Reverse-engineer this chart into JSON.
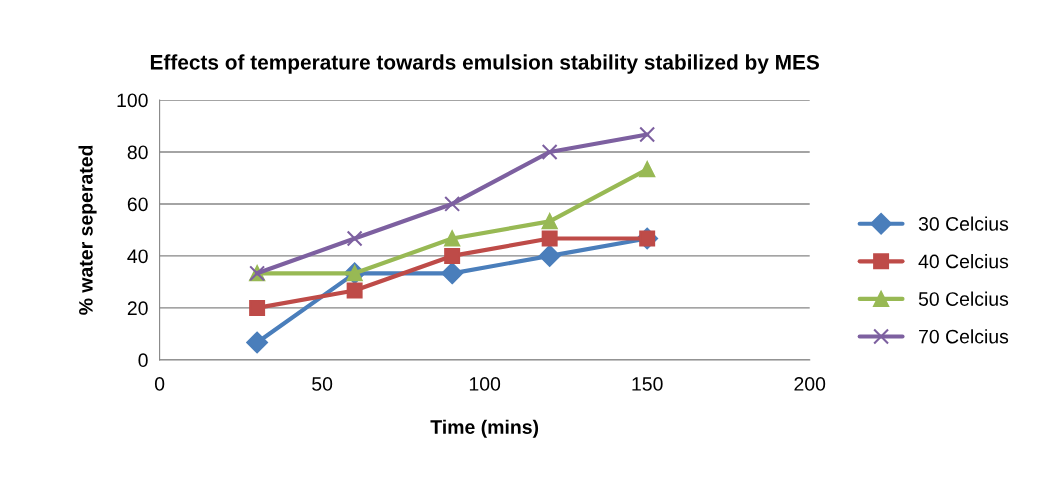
{
  "chart_data": {
    "type": "line",
    "title": "Effects of temperature towards emulsion stability stabilized by MES",
    "xlabel": "Time (mins)",
    "ylabel": "% water seperated",
    "x": [
      30,
      60,
      90,
      120,
      150
    ],
    "series": [
      {
        "name": "30 Celcius",
        "color": "#4a7ebb",
        "marker": "diamond",
        "values": [
          6.7,
          33.3,
          33.3,
          40,
          46.7
        ]
      },
      {
        "name": "40 Celcius",
        "color": "#be4b48",
        "marker": "square",
        "values": [
          20,
          26.7,
          40,
          46.7,
          46.7
        ]
      },
      {
        "name": "50 Celcius",
        "color": "#98b954",
        "marker": "triangle",
        "values": [
          33.3,
          33.3,
          46.7,
          53.3,
          73.3
        ]
      },
      {
        "name": "70 Celcius",
        "color": "#7d60a0",
        "marker": "cross",
        "values": [
          33.3,
          46.7,
          60,
          80,
          86.7
        ]
      }
    ],
    "xlim": [
      0,
      200
    ],
    "xticks": [
      0,
      50,
      100,
      150,
      200
    ],
    "ylim": [
      0,
      100
    ],
    "yticks": [
      0,
      20,
      40,
      60,
      80,
      100
    ],
    "grid": "y",
    "legend": "right",
    "line_style": "solid"
  }
}
